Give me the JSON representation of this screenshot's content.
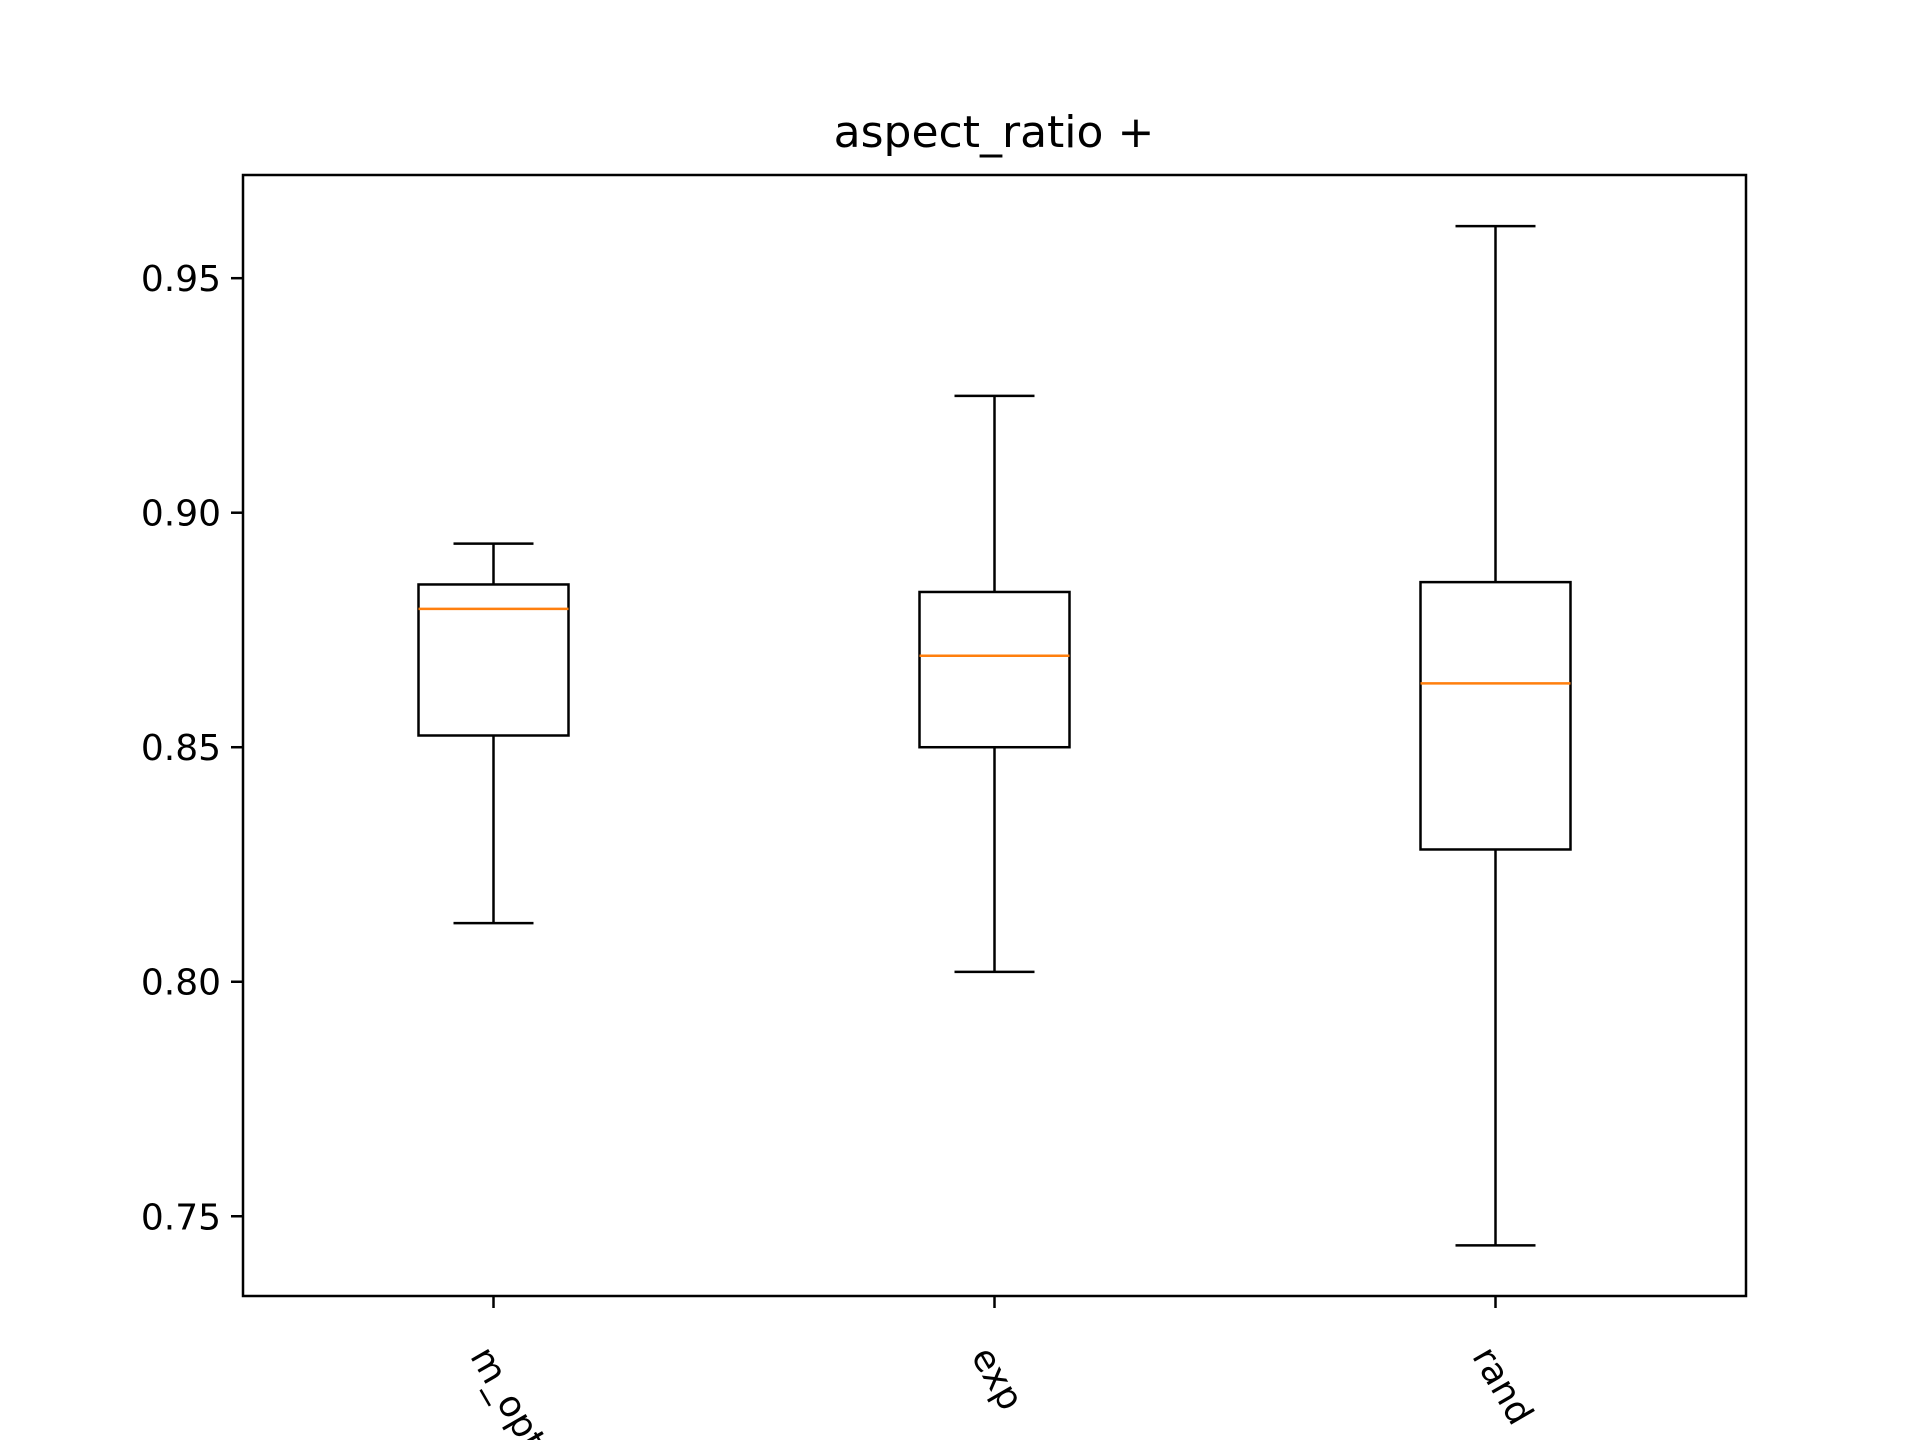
{
  "chart_data": {
    "type": "box",
    "title": "aspect_ratio +",
    "xlabel": "",
    "ylabel": "",
    "ylim": [
      0.733,
      0.972
    ],
    "yticks": [
      0.75,
      0.8,
      0.85,
      0.9,
      0.95
    ],
    "ytick_labels": [
      "0.75",
      "0.80",
      "0.85",
      "0.90",
      "0.95"
    ],
    "categories": [
      "m_opt",
      "exp",
      "rand"
    ],
    "boxes": [
      {
        "category": "m_opt",
        "whisker_low": 0.8125,
        "q1": 0.8525,
        "median": 0.8795,
        "q3": 0.8847,
        "whisker_high": 0.8934
      },
      {
        "category": "exp",
        "whisker_low": 0.8021,
        "q1": 0.85,
        "median": 0.8695,
        "q3": 0.8831,
        "whisker_high": 0.9249
      },
      {
        "category": "rand",
        "whisker_low": 0.7438,
        "q1": 0.8282,
        "median": 0.8636,
        "q3": 0.8852,
        "whisker_high": 0.9611
      }
    ],
    "grid": false,
    "legend": "none",
    "colors": {
      "box": "#000000",
      "median": "#ff7f0e",
      "axes": "#000000"
    }
  }
}
